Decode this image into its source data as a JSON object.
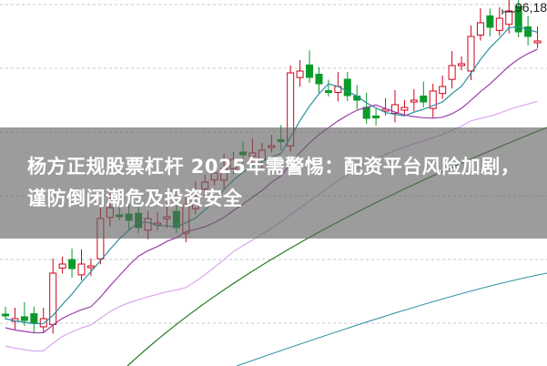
{
  "chart": {
    "type": "candlestick",
    "high_marker_label": "96,18",
    "colors": {
      "up": "#d0021b",
      "down": "#0a9a2a",
      "ma5": "#2a8fa0",
      "ma10": "#9b3fa8",
      "ma20": "#d9a8e8",
      "ma60": "#1f7a1f"
    }
  },
  "headline": {
    "title": "杨方正规股票杠杆 2025年需警惕：配资平台风险加剧，谨防倒闭潮危及投资安全"
  }
}
